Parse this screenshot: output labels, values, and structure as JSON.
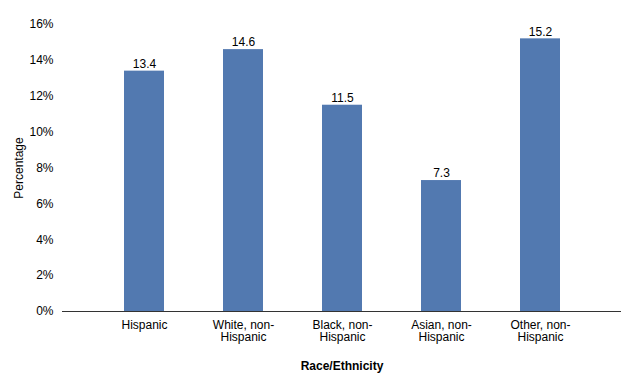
{
  "chart_data": {
    "type": "bar",
    "categories": [
      "Hispanic",
      "White, non-\nHispanic",
      "Black, non-\nHispanic",
      "Asian, non-\nHispanic",
      "Other, non-\nHispanic"
    ],
    "values": [
      13.4,
      14.6,
      11.5,
      7.3,
      15.2
    ],
    "color": "#5279b0",
    "xlabel": "Race/Ethnicity",
    "ylabel": "Percentage",
    "ylim": [
      0,
      16
    ],
    "yticks": [
      {
        "value": 0,
        "label": "0%"
      },
      {
        "value": 2,
        "label": "2%"
      },
      {
        "value": 4,
        "label": "4%"
      },
      {
        "value": 6,
        "label": "6%"
      },
      {
        "value": 8,
        "label": "8%"
      },
      {
        "value": 10,
        "label": "10%"
      },
      {
        "value": 12,
        "label": "12%"
      },
      {
        "value": 14,
        "label": "14%"
      },
      {
        "value": 16,
        "label": "16%"
      }
    ],
    "grid": false,
    "data_labels": true
  }
}
